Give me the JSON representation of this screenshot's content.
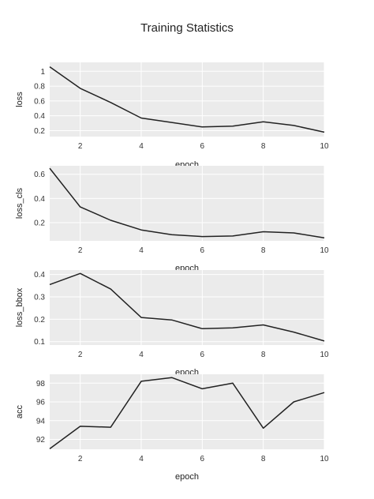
{
  "figure": {
    "title": "Training Statistics"
  },
  "chart_data": [
    {
      "type": "line",
      "xlabel": "epoch",
      "ylabel": "loss",
      "x": [
        1,
        2,
        3,
        4,
        5,
        6,
        7,
        8,
        9,
        10
      ],
      "values": [
        1.06,
        0.77,
        0.58,
        0.37,
        0.31,
        0.25,
        0.26,
        0.32,
        0.27,
        0.18
      ],
      "xlim": [
        1,
        10
      ],
      "ylim": [
        0.12,
        1.12
      ],
      "xticks": [
        2,
        4,
        6,
        8,
        10
      ],
      "yticks": [
        0.2,
        0.4,
        0.6,
        0.8,
        1
      ],
      "ytick_labels": [
        "0.2",
        "0.4",
        "0.6",
        "0.8",
        "1"
      ],
      "grid": true
    },
    {
      "type": "line",
      "xlabel": "epoch",
      "ylabel": "loss_cls",
      "x": [
        1,
        2,
        3,
        4,
        5,
        6,
        7,
        8,
        9,
        10
      ],
      "values": [
        0.65,
        0.33,
        0.22,
        0.14,
        0.1,
        0.085,
        0.09,
        0.125,
        0.115,
        0.075
      ],
      "xlim": [
        1,
        10
      ],
      "ylim": [
        0.05,
        0.67
      ],
      "xticks": [
        2,
        4,
        6,
        8,
        10
      ],
      "yticks": [
        0.2,
        0.4,
        0.6
      ],
      "ytick_labels": [
        "0.2",
        "0.4",
        "0.6"
      ],
      "grid": true
    },
    {
      "type": "line",
      "xlabel": "epoch",
      "ylabel": "loss_bbox",
      "x": [
        1,
        2,
        3,
        4,
        5,
        6,
        7,
        8,
        9,
        10
      ],
      "values": [
        0.355,
        0.405,
        0.335,
        0.208,
        0.197,
        0.158,
        0.162,
        0.175,
        0.143,
        0.103
      ],
      "xlim": [
        1,
        10
      ],
      "ylim": [
        0.085,
        0.42
      ],
      "xticks": [
        2,
        4,
        6,
        8,
        10
      ],
      "yticks": [
        0.1,
        0.2,
        0.3,
        0.4
      ],
      "ytick_labels": [
        "0.1",
        "0.2",
        "0.3",
        "0.4"
      ],
      "grid": true
    },
    {
      "type": "line",
      "xlabel": "epoch",
      "ylabel": "acc",
      "x": [
        1,
        2,
        3,
        4,
        5,
        6,
        7,
        8,
        9,
        10
      ],
      "values": [
        91.0,
        93.4,
        93.3,
        98.2,
        98.6,
        97.4,
        98.0,
        93.2,
        96.0,
        97.0
      ],
      "xlim": [
        1,
        10
      ],
      "ylim": [
        90.95,
        98.95
      ],
      "xticks": [
        2,
        4,
        6,
        8,
        10
      ],
      "yticks": [
        92,
        94,
        96,
        98
      ],
      "ytick_labels": [
        "92",
        "94",
        "96",
        "98"
      ],
      "grid": true
    }
  ]
}
